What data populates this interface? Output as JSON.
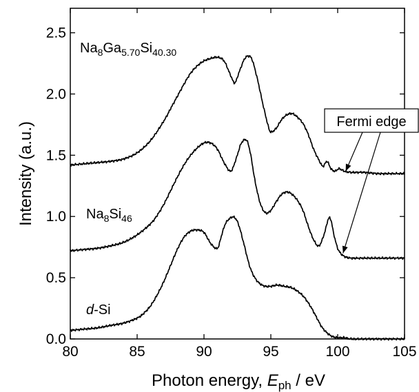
{
  "chart_data": {
    "type": "line",
    "xlabel_text": "Photon energy, ",
    "xlabel_var": "E",
    "xlabel_sub": "ph",
    "xlabel_unit": " / eV",
    "ylabel": "Intensity (a.u.)",
    "xlim": [
      80,
      105
    ],
    "ylim": [
      0,
      2.7
    ],
    "x_ticks": [
      80,
      85,
      90,
      95,
      100,
      105
    ],
    "x_tick_labels": [
      "80",
      "85",
      "90",
      "95",
      "100",
      "105"
    ],
    "y_ticks": [
      0.0,
      0.5,
      1.0,
      1.5,
      2.0,
      2.5
    ],
    "y_tick_labels": [
      "0.0",
      "0.5",
      "1.0",
      "1.5",
      "2.0",
      "2.5"
    ],
    "grid": false,
    "series": [
      {
        "name": "Na8Ga5.70Si40.30",
        "x": [
          80,
          81,
          82,
          83,
          84,
          85,
          86,
          87,
          87.5,
          88,
          88.5,
          89,
          89.5,
          90,
          90.5,
          91,
          91.5,
          92,
          92.3,
          92.6,
          93,
          93.3,
          93.6,
          94,
          94.4,
          94.8,
          95,
          95.4,
          95.8,
          96.2,
          96.6,
          97,
          97.4,
          97.8,
          98.2,
          98.6,
          98.9,
          99.2,
          99.5,
          99.8,
          100.1,
          100.5,
          101,
          102,
          103,
          104,
          105
        ],
        "values": [
          1.42,
          1.43,
          1.44,
          1.45,
          1.47,
          1.52,
          1.62,
          1.78,
          1.88,
          1.98,
          2.08,
          2.17,
          2.23,
          2.27,
          2.29,
          2.3,
          2.27,
          2.15,
          2.09,
          2.17,
          2.28,
          2.31,
          2.28,
          2.12,
          1.92,
          1.74,
          1.69,
          1.72,
          1.79,
          1.83,
          1.84,
          1.81,
          1.76,
          1.67,
          1.55,
          1.46,
          1.41,
          1.45,
          1.39,
          1.37,
          1.39,
          1.37,
          1.36,
          1.36,
          1.35,
          1.35,
          1.35
        ]
      },
      {
        "name": "Na8Si46",
        "x": [
          80,
          81,
          82,
          83,
          84,
          85,
          86,
          86.5,
          87,
          87.5,
          88,
          88.5,
          89,
          89.5,
          90,
          90.5,
          91,
          91.5,
          92,
          92.4,
          92.8,
          93.2,
          93.5,
          93.8,
          94.2,
          94.6,
          95,
          95.4,
          95.8,
          96.2,
          96.6,
          97,
          97.4,
          97.8,
          98.2,
          98.6,
          99,
          99.3,
          99.5,
          99.7,
          100,
          100.3,
          100.6,
          101,
          102,
          103,
          104,
          105
        ],
        "values": [
          0.72,
          0.73,
          0.74,
          0.76,
          0.79,
          0.85,
          0.94,
          1.01,
          1.1,
          1.21,
          1.32,
          1.42,
          1.5,
          1.56,
          1.6,
          1.6,
          1.55,
          1.44,
          1.37,
          1.47,
          1.6,
          1.62,
          1.5,
          1.3,
          1.11,
          1.03,
          1.05,
          1.12,
          1.18,
          1.2,
          1.18,
          1.13,
          1.05,
          0.92,
          0.81,
          0.76,
          0.86,
          0.98,
          0.97,
          0.86,
          0.74,
          0.69,
          0.67,
          0.66,
          0.66,
          0.66,
          0.66,
          0.66
        ]
      },
      {
        "name": "d-Si",
        "x": [
          80,
          81,
          82,
          83,
          84,
          85,
          85.5,
          86,
          86.5,
          87,
          87.5,
          88,
          88.5,
          89,
          89.5,
          90,
          90.5,
          91,
          91.3,
          91.6,
          92,
          92.3,
          92.6,
          93,
          93.4,
          93.8,
          94.2,
          94.6,
          95,
          95.5,
          96,
          96.5,
          97,
          97.5,
          98,
          98.4,
          98.8,
          99.2,
          99.6,
          100,
          100.5,
          101,
          102,
          103,
          104,
          105
        ],
        "values": [
          0.07,
          0.08,
          0.09,
          0.11,
          0.13,
          0.17,
          0.21,
          0.27,
          0.36,
          0.47,
          0.6,
          0.73,
          0.83,
          0.88,
          0.89,
          0.87,
          0.78,
          0.74,
          0.84,
          0.94,
          0.99,
          0.99,
          0.93,
          0.77,
          0.6,
          0.5,
          0.45,
          0.43,
          0.43,
          0.44,
          0.43,
          0.42,
          0.39,
          0.34,
          0.26,
          0.18,
          0.1,
          0.05,
          0.02,
          0.01,
          0.01,
          0.0,
          0.0,
          0.0,
          0.0,
          0.0
        ]
      }
    ],
    "labels": {
      "na8ga": {
        "base": "Na",
        "sub1": "8",
        "mid": "Ga",
        "sub2": "5.70",
        "mid2": "Si",
        "sub3": "40.30"
      },
      "na8si": {
        "base": "Na",
        "sub1": "8",
        "mid": "Si",
        "sub2": "46"
      },
      "dsi": {
        "italic": "d",
        "rest": "-Si"
      }
    },
    "annotation": {
      "text": "Fermi edge",
      "targets": [
        [
          100.6,
          1.37
        ],
        [
          100.4,
          0.7
        ]
      ]
    }
  }
}
